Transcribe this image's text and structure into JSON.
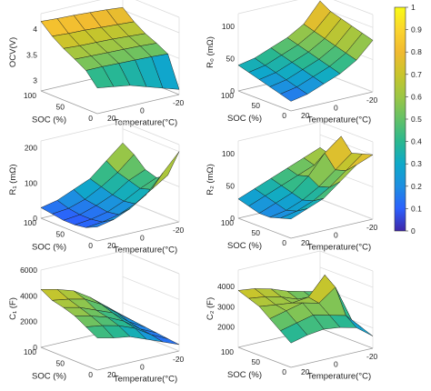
{
  "chart_data": [
    {
      "type": "surface",
      "zlabel": "OCV(V)",
      "xlabel": "SOC (%)",
      "ylabel": "Temperature(°C)",
      "x_ticks": [
        "100",
        "50",
        "0"
      ],
      "y_ticks": [
        "20",
        "0",
        "-20"
      ],
      "z_ticks": [
        "3",
        "3.5",
        "4"
      ],
      "zlim": [
        2.8,
        4.3
      ],
      "soc": [
        100,
        80,
        60,
        40,
        20,
        0
      ],
      "temperature": [
        30,
        20,
        10,
        0,
        -10,
        -20
      ],
      "values": [
        [
          4.15,
          4.13,
          4.12,
          4.1,
          4.08,
          4.05
        ],
        [
          3.95,
          3.93,
          3.92,
          3.9,
          3.88,
          3.86
        ],
        [
          3.8,
          3.78,
          3.77,
          3.76,
          3.74,
          3.72
        ],
        [
          3.68,
          3.67,
          3.66,
          3.65,
          3.64,
          3.62
        ],
        [
          3.55,
          3.55,
          3.54,
          3.53,
          3.52,
          3.5
        ],
        [
          3.3,
          3.25,
          3.2,
          3.1,
          3.0,
          2.9
        ]
      ]
    },
    {
      "type": "surface",
      "zlabel": "R₀ (mΩ)",
      "xlabel": "SOC (%)",
      "ylabel": "Temperature(°C)",
      "x_ticks": [
        "100",
        "50",
        "0"
      ],
      "y_ticks": [
        "20",
        "0",
        "-20"
      ],
      "z_ticks": [
        "0",
        "50",
        "100"
      ],
      "zlim": [
        0,
        120
      ],
      "soc": [
        100,
        80,
        60,
        40,
        20,
        0
      ],
      "temperature": [
        30,
        20,
        10,
        0,
        -10,
        -20
      ],
      "values": [
        [
          40,
          45,
          55,
          65,
          80,
          110
        ],
        [
          35,
          40,
          50,
          60,
          75,
          100
        ],
        [
          30,
          35,
          45,
          55,
          70,
          95
        ],
        [
          25,
          30,
          40,
          50,
          65,
          90
        ],
        [
          20,
          25,
          35,
          45,
          60,
          85
        ],
        [
          15,
          20,
          30,
          40,
          55,
          80
        ]
      ]
    },
    {
      "type": "surface",
      "zlabel": "R₁ (mΩ)",
      "xlabel": "SOC (%)",
      "ylabel": "Temperature(°C)",
      "x_ticks": [
        "100",
        "50",
        "0"
      ],
      "y_ticks": [
        "20",
        "0",
        "-20"
      ],
      "z_ticks": [
        "0",
        "100",
        "200"
      ],
      "zlim": [
        0,
        220
      ],
      "soc": [
        100,
        80,
        60,
        40,
        20,
        0
      ],
      "temperature": [
        30,
        20,
        10,
        0,
        -10,
        -20
      ],
      "values": [
        [
          30,
          40,
          60,
          80,
          120,
          160
        ],
        [
          25,
          30,
          45,
          70,
          100,
          140
        ],
        [
          20,
          25,
          40,
          60,
          90,
          110
        ],
        [
          20,
          25,
          35,
          55,
          80,
          100
        ],
        [
          25,
          30,
          40,
          60,
          90,
          120
        ],
        [
          40,
          50,
          70,
          100,
          150,
          200
        ]
      ]
    },
    {
      "type": "surface",
      "zlabel": "R₂ (mΩ)",
      "xlabel": "SOC (%)",
      "ylabel": "Temperature(°C)",
      "x_ticks": [
        "100",
        "50",
        "0"
      ],
      "y_ticks": [
        "20",
        "0",
        "-20"
      ],
      "z_ticks": [
        "0",
        "50",
        "100"
      ],
      "zlim": [
        0,
        120
      ],
      "soc": [
        100,
        80,
        60,
        40,
        20,
        0
      ],
      "temperature": [
        30,
        20,
        10,
        0,
        -10,
        -20
      ],
      "values": [
        [
          30,
          40,
          50,
          60,
          70,
          80
        ],
        [
          25,
          35,
          45,
          55,
          65,
          75
        ],
        [
          20,
          30,
          40,
          60,
          90,
          110
        ],
        [
          20,
          25,
          35,
          50,
          70,
          90
        ],
        [
          25,
          30,
          40,
          55,
          75,
          95
        ],
        [
          30,
          40,
          50,
          70,
          90,
          100
        ]
      ]
    },
    {
      "type": "surface",
      "zlabel": "C₁ (F)",
      "xlabel": "SOC (%)",
      "ylabel": "Temperature(°C)",
      "x_ticks": [
        "100",
        "50",
        "0"
      ],
      "y_ticks": [
        "20",
        "0",
        "-20"
      ],
      "z_ticks": [
        "0",
        "2000",
        "4000",
        "6000"
      ],
      "zlim": [
        0,
        6000
      ],
      "soc": [
        100,
        80,
        60,
        40,
        20,
        0
      ],
      "temperature": [
        30,
        20,
        10,
        0,
        -10,
        -20
      ],
      "values": [
        [
          4500,
          4200,
          3800,
          3000,
          2000,
          1000
        ],
        [
          4000,
          3800,
          3500,
          2800,
          1800,
          900
        ],
        [
          3800,
          3500,
          3000,
          2500,
          1500,
          800
        ],
        [
          3500,
          3200,
          2800,
          2200,
          1300,
          700
        ],
        [
          3000,
          2800,
          2500,
          2000,
          1200,
          600
        ],
        [
          2500,
          2200,
          2000,
          1500,
          1000,
          500
        ]
      ]
    },
    {
      "type": "surface",
      "zlabel": "C₂ (F)",
      "xlabel": "SOC (%)",
      "ylabel": "Temperature(°C)",
      "x_ticks": [
        "100",
        "50",
        "0"
      ],
      "y_ticks": [
        "20",
        "0",
        "-20"
      ],
      "z_ticks": [
        "2000",
        "3000",
        "4000"
      ],
      "zlim": [
        1000,
        4800
      ],
      "soc": [
        100,
        80,
        60,
        40,
        20,
        0
      ],
      "temperature": [
        30,
        20,
        10,
        0,
        -10,
        -20
      ],
      "values": [
        [
          3800,
          3700,
          3500,
          3200,
          3000,
          2800
        ],
        [
          3600,
          3500,
          3300,
          3000,
          2800,
          2600
        ],
        [
          3400,
          3300,
          3200,
          3300,
          4200,
          2400
        ],
        [
          3000,
          3200,
          3400,
          3200,
          3800,
          2000
        ],
        [
          2600,
          2800,
          3000,
          2800,
          2600,
          1800
        ],
        [
          2200,
          2400,
          2500,
          2400,
          2200,
          1600
        ]
      ]
    }
  ],
  "colorbar": {
    "ticks": [
      "0",
      "0.1",
      "0.2",
      "0.3",
      "0.4",
      "0.5",
      "0.6",
      "0.7",
      "0.8",
      "0.9",
      "1"
    ],
    "range": [
      0,
      1
    ],
    "colormap": "parula"
  }
}
